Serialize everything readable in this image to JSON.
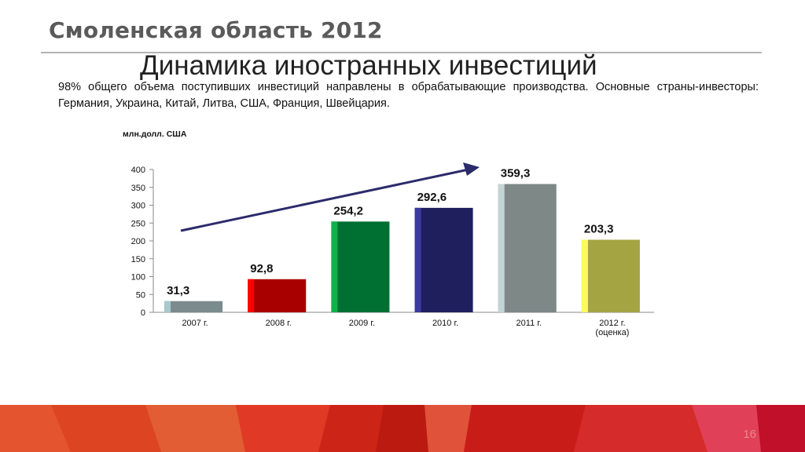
{
  "header": {
    "title": "Смоленская область 2012"
  },
  "slide": {
    "title": "Динамика иностранных инвестиций",
    "text": "98% общего объема поступивших инвестиций направлены в обрабатывающие производства. Основные страны-инвесторы: Германия, Украина, Китай, Литва, США, Франция, Швейцария."
  },
  "chart_data": {
    "type": "bar",
    "unit_label": "млн.долл. США",
    "categories": [
      "2007 г.",
      "2008 г.",
      "2009 г.",
      "2010 г.",
      "2011 г.",
      "2012 г. (оценка)"
    ],
    "category_lines": [
      [
        "2007 г."
      ],
      [
        "2008 г."
      ],
      [
        "2009 г."
      ],
      [
        "2010 г."
      ],
      [
        "2011 г."
      ],
      [
        "2012 г.",
        "(оценка)"
      ]
    ],
    "values": [
      31.3,
      92.8,
      254.2,
      292.6,
      359.3,
      203.3
    ],
    "value_labels": [
      "31,3",
      "92,8",
      "254,2",
      "292,6",
      "359,3",
      "203,3"
    ],
    "colors": [
      "#7b8a8c",
      "#a80000",
      "#006f32",
      "#1f1f5e",
      "#7d8887",
      "#a5a443"
    ],
    "highlight_colors": [
      "#a9c8cc",
      "#ff0000",
      "#11b04a",
      "#3a3aa0",
      "#c3d4d4",
      "#fbfb5a"
    ],
    "ylim": [
      0,
      400
    ],
    "yticks": [
      0,
      50,
      100,
      150,
      200,
      250,
      300,
      350,
      400
    ],
    "trend_arrow_color": "#2b2b6b",
    "legend": "none",
    "grid": false
  },
  "footer": {
    "page_number": "16"
  }
}
